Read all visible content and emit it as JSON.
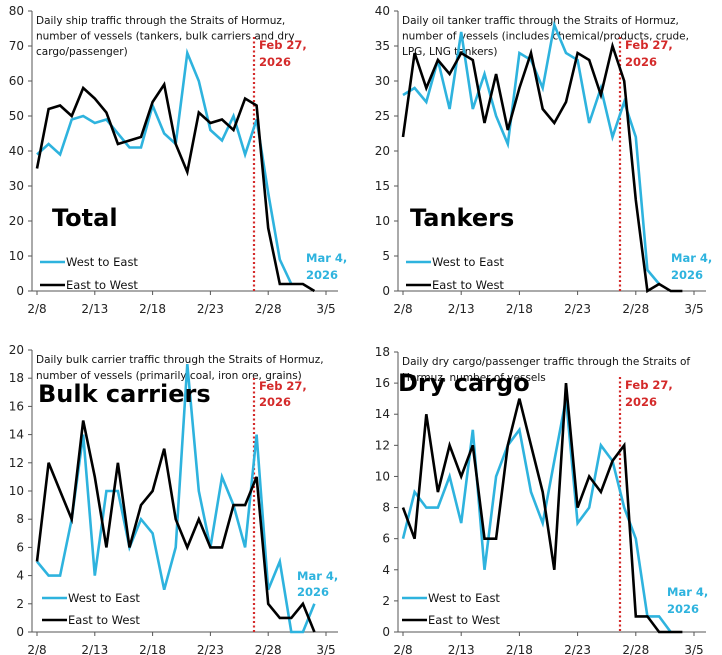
{
  "colors": {
    "west_to_east": "#2eb3de",
    "east_to_west": "#000000",
    "event_line": "#d42a2a",
    "mar4_label": "#2eb3de"
  },
  "chart_data": [
    {
      "type": "line",
      "id": "total",
      "title": "Daily ship traffic through the Straits of Hormuz, number of vessels (tankers, bulk carriers and dry cargo/passenger)",
      "title_lines": [
        "Daily ship traffic through the Straits of Hormuz,",
        "number of vessels (tankers, bulk carriers and dry",
        "cargo/passenger)"
      ],
      "big_label": "Total",
      "xlabel": "",
      "ylabel": "",
      "ylim": [
        0,
        80
      ],
      "yticks": [
        0,
        10,
        20,
        30,
        40,
        50,
        60,
        70,
        80
      ],
      "xticks": [
        "2/8",
        "2/13",
        "2/18",
        "2/23",
        "2/28",
        "3/5"
      ],
      "x": [
        "2/8",
        "2/9",
        "2/10",
        "2/11",
        "2/12",
        "2/13",
        "2/14",
        "2/15",
        "2/16",
        "2/17",
        "2/18",
        "2/19",
        "2/20",
        "2/21",
        "2/22",
        "2/23",
        "2/24",
        "2/25",
        "2/26",
        "2/27",
        "2/28",
        "3/1",
        "3/2",
        "3/3",
        "3/4"
      ],
      "series": [
        {
          "name": "West to East",
          "values": [
            39,
            42,
            39,
            49,
            50,
            48,
            49,
            45,
            41,
            41,
            53,
            45,
            42,
            68,
            60,
            46,
            43,
            50,
            39,
            49,
            28,
            9,
            2,
            null,
            null
          ]
        },
        {
          "name": "East to West",
          "values": [
            35,
            52,
            53,
            50,
            58,
            55,
            51,
            42,
            43,
            44,
            54,
            59,
            42,
            34,
            51,
            48,
            49,
            46,
            55,
            53,
            18,
            2,
            2,
            2,
            0
          ]
        }
      ],
      "annotations": {
        "event_date": "2/26.6",
        "event_label": [
          "Feb 27,",
          "2026"
        ],
        "end_label": [
          "Mar 4,",
          "2026"
        ]
      },
      "legend": {
        "position": "bottom-left",
        "entries": [
          "West to East",
          "East to West"
        ]
      }
    },
    {
      "type": "line",
      "id": "tankers",
      "title": "Daily oil tanker traffic through the Straits of Hormuz, number of vessels (includes chemical/products, crude, LPG, LNG tankers)",
      "title_lines": [
        "Daily oil tanker traffic through the Straits of Hormuz,",
        "number of vessels (includes chemical/products, crude,",
        "LPG, LNG tankers)"
      ],
      "big_label": "Tankers",
      "xlabel": "",
      "ylabel": "",
      "ylim": [
        0,
        40
      ],
      "yticks": [
        0,
        5,
        10,
        15,
        20,
        25,
        30,
        35,
        40
      ],
      "xticks": [
        "2/8",
        "2/13",
        "2/18",
        "2/23",
        "2/28",
        "3/5"
      ],
      "x": [
        "2/8",
        "2/9",
        "2/10",
        "2/11",
        "2/12",
        "2/13",
        "2/14",
        "2/15",
        "2/16",
        "2/17",
        "2/18",
        "2/19",
        "2/20",
        "2/21",
        "2/22",
        "2/23",
        "2/24",
        "2/25",
        "2/26",
        "2/27",
        "2/28",
        "3/1",
        "3/2",
        "3/3",
        "3/4"
      ],
      "series": [
        {
          "name": "West to East",
          "values": [
            28,
            29,
            27,
            33,
            26,
            37,
            26,
            31,
            25,
            21,
            34,
            33,
            29,
            38,
            34,
            33,
            24,
            29,
            22,
            27,
            22,
            3,
            1,
            null,
            null
          ]
        },
        {
          "name": "East to West",
          "values": [
            22,
            34,
            29,
            33,
            31,
            34,
            33,
            24,
            31,
            23,
            29,
            34,
            26,
            24,
            27,
            34,
            33,
            28,
            35,
            30,
            13,
            0,
            1,
            0,
            0
          ]
        }
      ],
      "annotations": {
        "event_label": [
          "Feb 27,",
          "2026"
        ],
        "end_label": [
          "Mar 4,",
          "2026"
        ]
      },
      "legend": {
        "position": "bottom-left",
        "entries": [
          "West to East",
          "East to West"
        ]
      }
    },
    {
      "type": "line",
      "id": "bulk",
      "title": "Daily bulk carrier traffic through the Straits of Hormuz, number of vessels (primarily coal, iron ore, grains)",
      "title_lines": [
        "Daily bulk carrier traffic through the Straits of Hormuz,",
        "number of vessels (primarily coal, iron ore, grains)"
      ],
      "big_label": "Bulk carriers",
      "xlabel": "",
      "ylabel": "",
      "ylim": [
        0,
        20
      ],
      "yticks": [
        0,
        2,
        4,
        6,
        8,
        10,
        12,
        14,
        16,
        18,
        20
      ],
      "xticks": [
        "2/8",
        "2/13",
        "2/18",
        "2/23",
        "2/28",
        "3/5"
      ],
      "x": [
        "2/8",
        "2/9",
        "2/10",
        "2/11",
        "2/12",
        "2/13",
        "2/14",
        "2/15",
        "2/16",
        "2/17",
        "2/18",
        "2/19",
        "2/20",
        "2/21",
        "2/22",
        "2/23",
        "2/24",
        "2/25",
        "2/26",
        "2/27",
        "2/28",
        "3/1",
        "3/2",
        "3/3",
        "3/4"
      ],
      "series": [
        {
          "name": "West to East",
          "values": [
            5,
            4,
            4,
            8,
            14,
            4,
            10,
            10,
            6,
            8,
            7,
            3,
            6,
            19,
            10,
            6,
            11,
            9,
            6,
            14,
            3,
            5,
            0,
            0,
            2
          ]
        },
        {
          "name": "East to West",
          "values": [
            5,
            12,
            10,
            8,
            15,
            11,
            6,
            12,
            6,
            9,
            10,
            13,
            8,
            6,
            8,
            6,
            6,
            9,
            9,
            11,
            2,
            1,
            1,
            2,
            0
          ]
        }
      ],
      "annotations": {
        "event_label": [
          "Feb 27,",
          "2026"
        ],
        "end_label": [
          "Mar 4,",
          "2026"
        ]
      },
      "legend": {
        "position": "bottom-left",
        "entries": [
          "West to East",
          "East to West"
        ]
      }
    },
    {
      "type": "line",
      "id": "dry",
      "title": "Daily dry cargo/passenger traffic through the Straits of Hormuz, number of vessels",
      "title_lines": [
        "Daily dry cargo/passenger traffic through the Straits of",
        "Hormuz, number of vessels"
      ],
      "big_label": "Dry cargo",
      "xlabel": "",
      "ylabel": "",
      "ylim": [
        0,
        18
      ],
      "yticks": [
        0,
        2,
        4,
        6,
        8,
        10,
        12,
        14,
        16,
        18
      ],
      "xticks": [
        "2/8",
        "2/13",
        "2/18",
        "2/23",
        "2/28",
        "3/5"
      ],
      "x": [
        "2/8",
        "2/9",
        "2/10",
        "2/11",
        "2/12",
        "2/13",
        "2/14",
        "2/15",
        "2/16",
        "2/17",
        "2/18",
        "2/19",
        "2/20",
        "2/21",
        "2/22",
        "2/23",
        "2/24",
        "2/25",
        "2/26",
        "2/27",
        "2/28",
        "3/1",
        "3/2",
        "3/3",
        "3/4"
      ],
      "series": [
        {
          "name": "West to East",
          "values": [
            6,
            9,
            8,
            8,
            10,
            7,
            13,
            4,
            10,
            12,
            13,
            9,
            7,
            11,
            15,
            7,
            8,
            12,
            11,
            8,
            6,
            1,
            1,
            0,
            null
          ]
        },
        {
          "name": "East to West",
          "values": [
            8,
            6,
            14,
            9,
            12,
            10,
            12,
            6,
            6,
            12,
            15,
            12,
            9,
            4,
            16,
            8,
            10,
            9,
            11,
            12,
            1,
            1,
            0,
            0,
            0
          ]
        }
      ],
      "annotations": {
        "event_label": [
          "Feb 27,",
          "2026"
        ],
        "end_label": [
          "Mar 4,",
          "2026"
        ]
      },
      "legend": {
        "position": "bottom-left",
        "entries": [
          "West to East",
          "East to West"
        ]
      }
    }
  ]
}
